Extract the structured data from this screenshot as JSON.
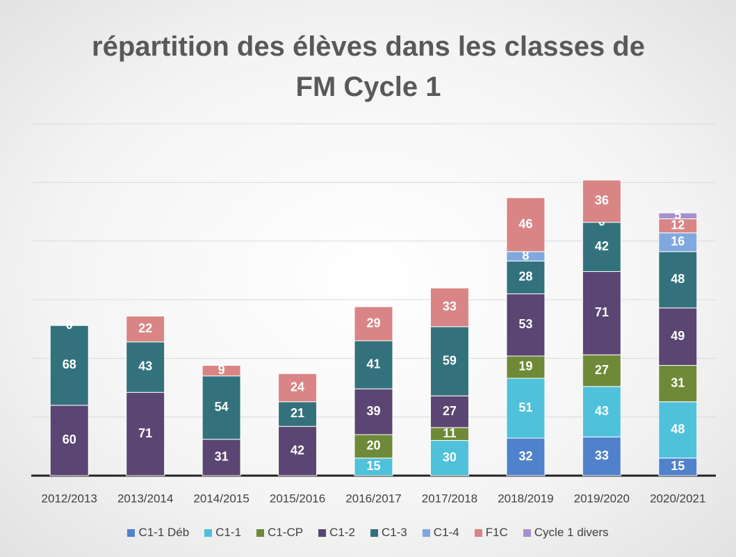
{
  "chart_data": {
    "type": "stacked_bar",
    "title": "répartition des élèves dans les classes de FM Cycle 1",
    "categories": [
      "2012/2013",
      "2013/2014",
      "2014/2015",
      "2015/2016",
      "2016/2017",
      "2017/2018",
      "2018/2019",
      "2019/2020",
      "2020/2021"
    ],
    "series": [
      {
        "name": "C1-1 Déb",
        "color": "#5082cc",
        "values": [
          null,
          null,
          null,
          null,
          null,
          null,
          32,
          33,
          15
        ]
      },
      {
        "name": "C1-1",
        "color": "#4fc1da",
        "values": [
          null,
          null,
          null,
          null,
          15,
          30,
          51,
          43,
          48
        ]
      },
      {
        "name": "C1-CP",
        "color": "#6e8a38",
        "values": [
          null,
          null,
          null,
          null,
          20,
          11,
          19,
          27,
          31
        ]
      },
      {
        "name": "C1-2",
        "color": "#5b4572",
        "values": [
          60,
          71,
          31,
          42,
          39,
          27,
          53,
          71,
          49
        ]
      },
      {
        "name": "C1-3",
        "color": "#33727d",
        "values": [
          68,
          43,
          54,
          21,
          41,
          59,
          28,
          42,
          48
        ]
      },
      {
        "name": "C1-4",
        "color": "#80a8de",
        "values": [
          null,
          null,
          null,
          null,
          null,
          null,
          8,
          0,
          16
        ]
      },
      {
        "name": "F1C",
        "color": "#d98585",
        "values": [
          0,
          22,
          9,
          24,
          29,
          33,
          46,
          36,
          12
        ]
      },
      {
        "name": "Cycle 1 divers",
        "color": "#a591cc",
        "values": [
          null,
          null,
          null,
          null,
          null,
          null,
          null,
          null,
          5
        ]
      }
    ],
    "ylim": [
      0,
      300
    ],
    "yticks": [
      0,
      50,
      100,
      150,
      200,
      250,
      300
    ],
    "grid": true,
    "legend": "bottom"
  }
}
